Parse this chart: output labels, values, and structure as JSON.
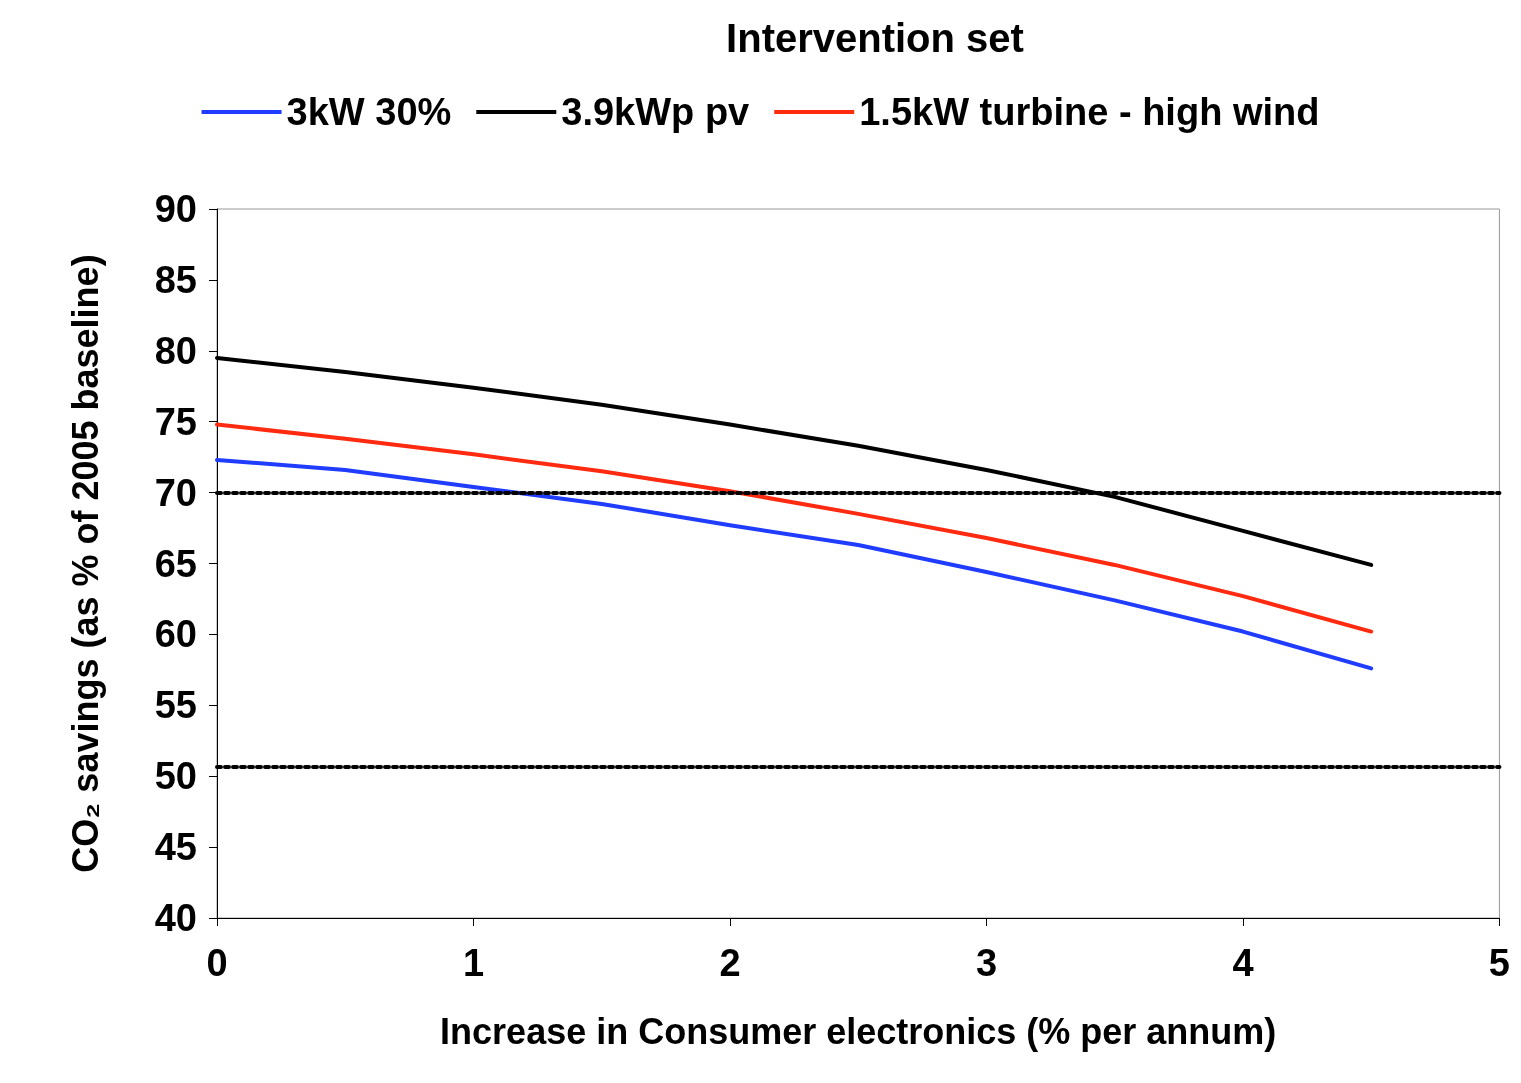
{
  "chart_data": {
    "type": "line",
    "legend_title": "Intervention set",
    "xlabel": "Increase in Consumer electronics (% per annum)",
    "ylabel": "CO₂ savings (as % of 2005 baseline)",
    "x": [
      0,
      0.5,
      1,
      1.5,
      2,
      2.5,
      3,
      3.5,
      4,
      4.5
    ],
    "series": [
      {
        "name": "3kW 30%",
        "color": "#1f3cff",
        "values": [
          72.3,
          71.6,
          70.4,
          69.2,
          67.7,
          66.3,
          64.4,
          62.4,
          60.2,
          57.6
        ]
      },
      {
        "name": "3.9kWp pv",
        "color": "#000000",
        "values": [
          79.5,
          78.5,
          77.4,
          76.2,
          74.8,
          73.3,
          71.6,
          69.7,
          67.3,
          64.9
        ]
      },
      {
        "name": "1.5kW turbine - high wind",
        "color": "#ff2a10",
        "values": [
          74.8,
          73.8,
          72.7,
          71.5,
          70.1,
          68.5,
          66.8,
          64.9,
          62.7,
          60.2
        ]
      }
    ],
    "xlim": [
      0,
      5
    ],
    "xticks": [
      0,
      1,
      2,
      3,
      4,
      5
    ],
    "ylim": [
      40,
      90
    ],
    "yticks": [
      40,
      45,
      50,
      55,
      60,
      65,
      70,
      75,
      80,
      85,
      90
    ],
    "ref_lines": [
      {
        "axis": "y",
        "value": 70,
        "color": "#000000",
        "line_style": "dotted"
      },
      {
        "axis": "y",
        "value": 50.7,
        "color": "#000000",
        "line_style": "dotted"
      }
    ],
    "grid": false,
    "legend": "top",
    "marker": "none",
    "line_style": "solid"
  }
}
